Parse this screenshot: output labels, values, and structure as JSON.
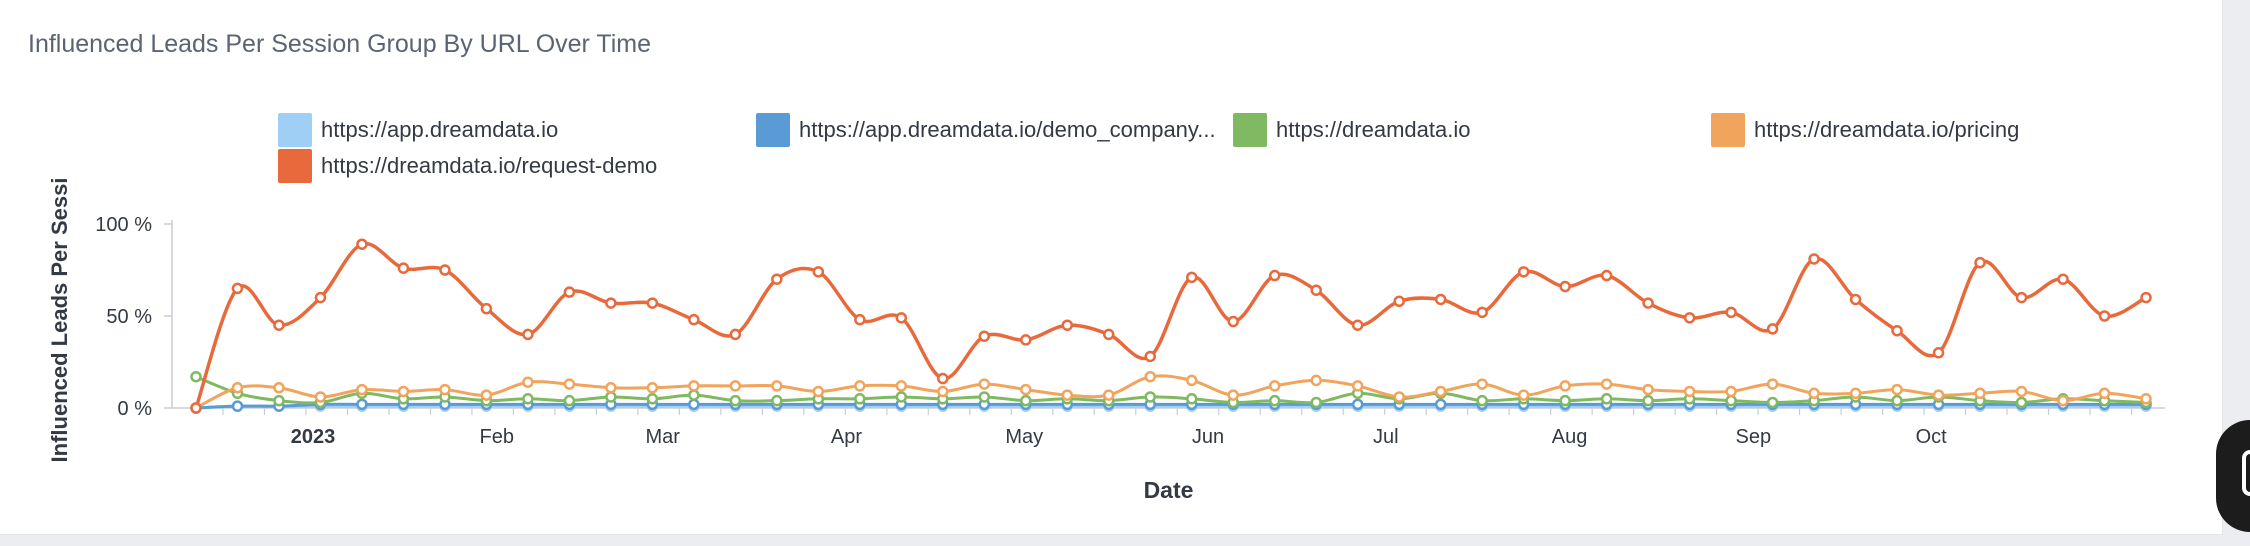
{
  "title": "Influenced Leads Per Session Group By URL Over Time",
  "legend": [
    {
      "label": "https://app.dreamdata.io",
      "color": "#9fcff5"
    },
    {
      "label": "https://app.dreamdata.io/demo_company...",
      "color": "#5b9bd5"
    },
    {
      "label": "https://dreamdata.io",
      "color": "#7fb961"
    },
    {
      "label": "https://dreamdata.io/pricing",
      "color": "#f0a45c"
    },
    {
      "label": "https://dreamdata.io/request-demo",
      "color": "#e86a3c"
    }
  ],
  "chart_data": {
    "type": "line",
    "title": "Influenced Leads Per Session Group By URL Over Time",
    "xlabel": "Date",
    "ylabel": "Influenced Leads Per Sessi",
    "ylim": [
      0,
      100
    ],
    "y_ticks": [
      "0 %",
      "50 %",
      "100 %"
    ],
    "x_ticks": [
      "2023",
      "Feb",
      "Mar",
      "Apr",
      "May",
      "Jun",
      "Jul",
      "Aug",
      "Sep",
      "Oct"
    ],
    "grid": false,
    "legend_position": "top",
    "x": [
      "2022-12-19",
      "2022-12-26",
      "2023-01-02",
      "2023-01-09",
      "2023-01-16",
      "2023-01-23",
      "2023-01-30",
      "2023-02-06",
      "2023-02-13",
      "2023-02-20",
      "2023-02-27",
      "2023-03-06",
      "2023-03-13",
      "2023-03-20",
      "2023-03-27",
      "2023-04-03",
      "2023-04-10",
      "2023-04-17",
      "2023-04-24",
      "2023-05-01",
      "2023-05-08",
      "2023-05-15",
      "2023-05-22",
      "2023-05-29",
      "2023-06-05",
      "2023-06-12",
      "2023-06-19",
      "2023-06-26",
      "2023-07-03",
      "2023-07-10",
      "2023-07-17",
      "2023-07-24",
      "2023-07-31",
      "2023-08-07",
      "2023-08-14",
      "2023-08-21",
      "2023-08-28",
      "2023-09-04",
      "2023-09-11",
      "2023-09-18",
      "2023-09-25",
      "2023-10-02",
      "2023-10-09",
      "2023-10-16",
      "2023-10-23",
      "2023-10-30",
      "2023-11-06",
      "2023-11-13"
    ],
    "series": [
      {
        "name": "https://app.dreamdata.io",
        "color": "#9fcff5",
        "values": [
          0,
          1,
          1,
          1,
          1,
          1,
          1,
          1,
          1,
          1,
          1,
          1,
          1,
          1,
          1,
          1,
          1,
          1,
          1,
          1,
          1,
          1,
          1,
          1,
          1,
          1,
          1,
          1,
          1,
          1,
          1,
          1,
          1,
          1,
          1,
          1,
          1,
          1,
          1,
          1,
          1,
          1,
          1,
          1,
          1,
          1,
          1,
          1
        ]
      },
      {
        "name": "https://app.dreamdata.io/demo_company...",
        "color": "#5b9bd5",
        "values": [
          0,
          1,
          1,
          2,
          2,
          2,
          2,
          2,
          2,
          2,
          2,
          2,
          2,
          2,
          2,
          2,
          2,
          2,
          2,
          2,
          2,
          2,
          2,
          2,
          2,
          2,
          2,
          2,
          2,
          2,
          2,
          2,
          2,
          2,
          2,
          2,
          2,
          2,
          2,
          2,
          2,
          2,
          2,
          2,
          2,
          2,
          2,
          2
        ]
      },
      {
        "name": "https://dreamdata.io",
        "color": "#7fb961",
        "values": [
          17,
          8,
          4,
          3,
          8,
          5,
          6,
          4,
          5,
          4,
          6,
          5,
          7,
          4,
          4,
          5,
          5,
          6,
          5,
          6,
          4,
          5,
          4,
          6,
          5,
          3,
          4,
          3,
          8,
          5,
          8,
          4,
          5,
          4,
          5,
          4,
          5,
          4,
          3,
          4,
          6,
          4,
          6,
          4,
          3,
          5,
          4,
          3
        ]
      },
      {
        "name": "https://dreamdata.io/pricing",
        "color": "#f0a45c",
        "values": [
          0,
          11,
          11,
          6,
          10,
          9,
          10,
          7,
          14,
          13,
          11,
          11,
          12,
          12,
          12,
          9,
          12,
          12,
          9,
          13,
          10,
          7,
          7,
          17,
          15,
          7,
          12,
          15,
          12,
          6,
          9,
          13,
          7,
          12,
          13,
          10,
          9,
          9,
          13,
          8,
          8,
          10,
          7,
          8,
          9,
          4,
          8,
          5
        ]
      },
      {
        "name": "https://dreamdata.io/request-demo",
        "color": "#e86a3c",
        "values": [
          0,
          65,
          45,
          60,
          89,
          76,
          75,
          54,
          40,
          63,
          57,
          57,
          48,
          40,
          70,
          74,
          48,
          49,
          16,
          39,
          37,
          45,
          40,
          28,
          71,
          47,
          72,
          64,
          45,
          58,
          59,
          52,
          74,
          66,
          72,
          57,
          49,
          52,
          43,
          81,
          59,
          42,
          30,
          79,
          60,
          70,
          50,
          60
        ]
      }
    ]
  }
}
